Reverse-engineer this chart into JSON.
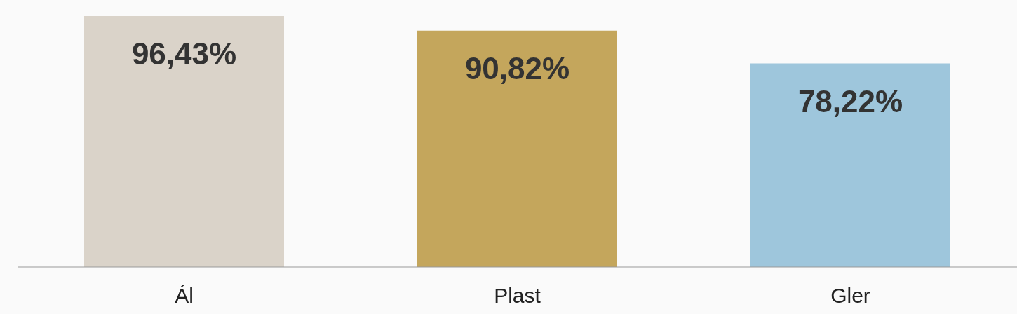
{
  "chart_data": {
    "type": "bar",
    "categories": [
      "Ál",
      "Plast",
      "Gler"
    ],
    "values": [
      96.43,
      90.82,
      78.22
    ],
    "value_labels": [
      "96,43%",
      "90,82%",
      "78,22%"
    ],
    "colors": [
      "#dad3c9",
      "#c4a65c",
      "#9ec6dc"
    ],
    "grid": false,
    "legend": false
  }
}
